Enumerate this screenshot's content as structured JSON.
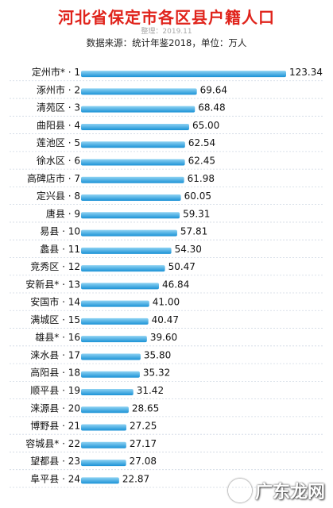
{
  "header": {
    "title": "河北省保定市各区县户籍人口",
    "subtitle": "整理：2019.11",
    "source": "数据来源：统计年鉴2018，单位：万人"
  },
  "watermark": {
    "text": "广东龙网",
    "color": "#ffffff"
  },
  "colors": {
    "bar_top": "#8fd3f3",
    "bar_bottom": "#1a92d6",
    "guide": "#cfd8e3",
    "title": "#e0231b"
  },
  "chart_data": {
    "type": "bar",
    "orientation": "horizontal",
    "title": "河北省保定市各区县户籍人口",
    "unit": "万人",
    "categories": [
      "定州市* · 1",
      "涿州市 · 2",
      "清苑区 · 3",
      "曲阳县 · 4",
      "莲池区 · 5",
      "徐水区 · 6",
      "高碑店市 · 7",
      "定兴县 · 8",
      "唐县 · 9",
      "易县 · 10",
      "蠡县 · 11",
      "竞秀区 · 12",
      "安新县* · 13",
      "安国市 · 14",
      "满城区 · 15",
      "雄县* · 16",
      "涞水县 · 17",
      "高阳县 · 18",
      "顺平县 · 19",
      "涞源县 · 20",
      "博野县 · 21",
      "容城县* · 22",
      "望都县 · 23",
      "阜平县 · 24"
    ],
    "values": [
      123.34,
      69.64,
      68.48,
      65.0,
      62.54,
      62.45,
      61.98,
      60.05,
      59.31,
      57.81,
      54.3,
      50.47,
      46.84,
      41.0,
      40.47,
      39.6,
      35.8,
      35.32,
      31.42,
      28.65,
      27.25,
      27.17,
      27.08,
      22.87
    ],
    "value_labels": [
      "123.34",
      "69.64",
      "68.48",
      "65.00",
      "62.54",
      "62.45",
      "61.98",
      "60.05",
      "59.31",
      "57.81",
      "54.30",
      "50.47",
      "46.84",
      "41.00",
      "40.47",
      "39.60",
      "35.80",
      "35.32",
      "31.42",
      "28.65",
      "27.25",
      "27.17",
      "27.08",
      "22.87"
    ],
    "xlim": [
      0,
      123.34
    ],
    "legend": "none",
    "grid": false
  }
}
